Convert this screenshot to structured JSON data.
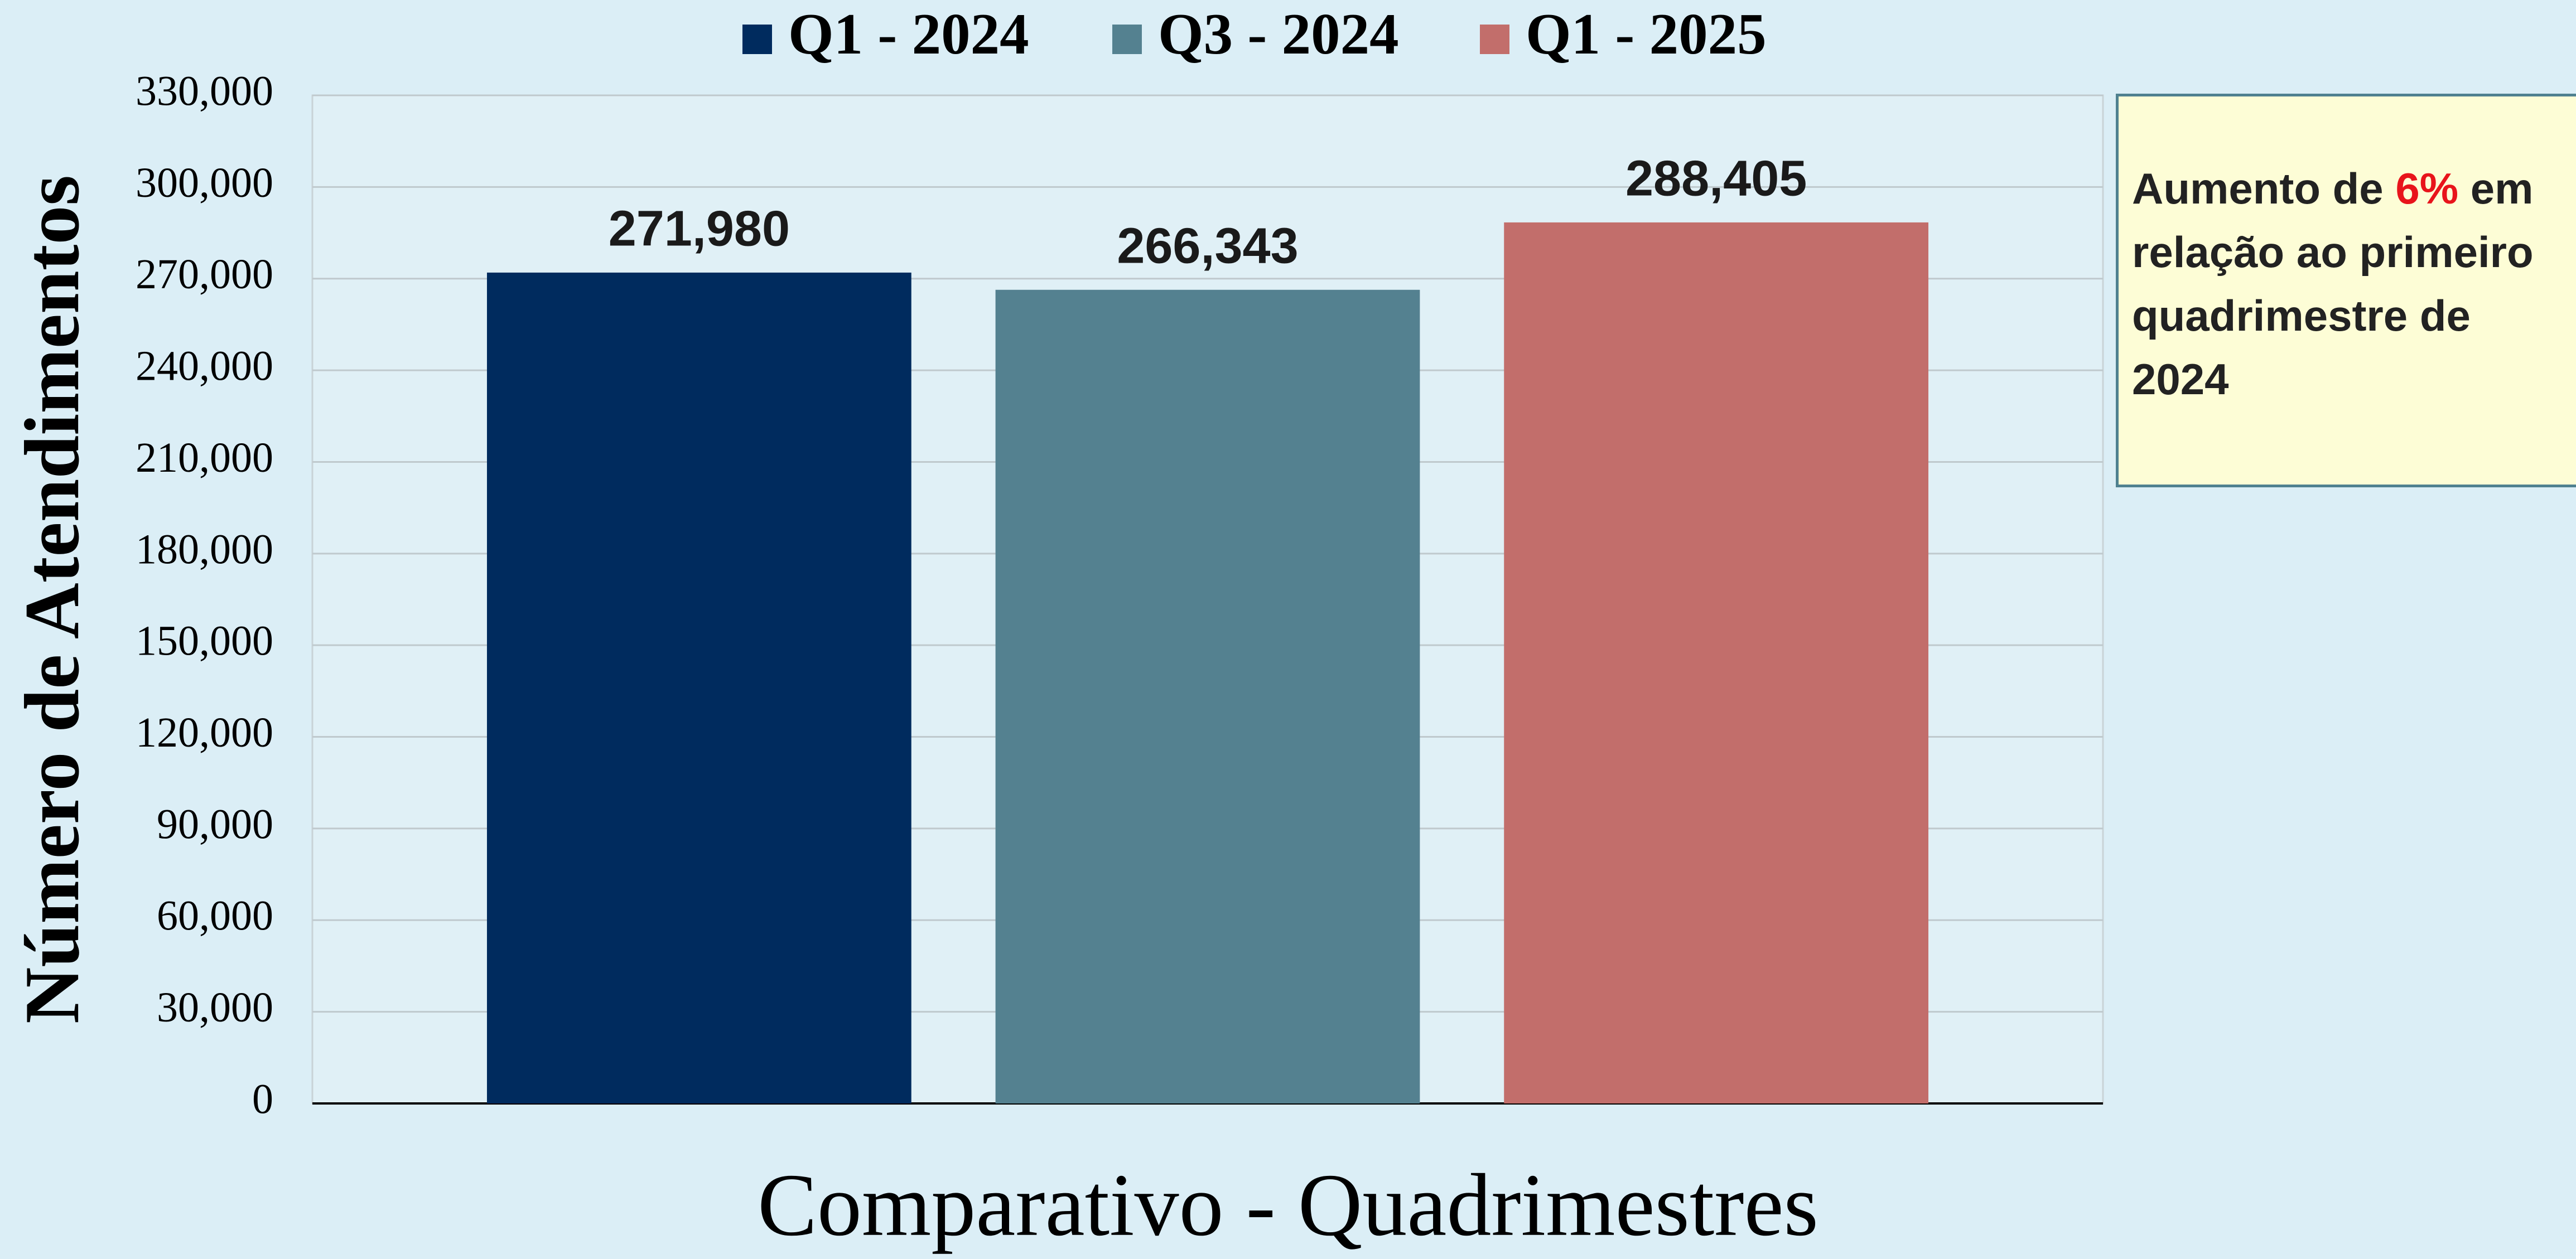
{
  "chart_data": {
    "type": "bar",
    "x_label": "Comparativo - Quadrimestres",
    "y_label": "Número de Atendimentos",
    "categories": [
      null
    ],
    "series": [
      {
        "name": "Q1 - 2024",
        "color": "#002b5e",
        "values": [
          271980
        ],
        "value_labels": [
          "271,980"
        ]
      },
      {
        "name": "Q3 - 2024",
        "color": "#548190",
        "values": [
          266343
        ],
        "value_labels": [
          "266,343"
        ]
      },
      {
        "name": "Q1 - 2025",
        "color": "#c26e6b",
        "values": [
          288405
        ],
        "value_labels": [
          "288,405"
        ]
      }
    ],
    "ylim": [
      0,
      330000
    ],
    "yticks": [
      0,
      {
        "value": 30000,
        "label": "30,000"
      },
      {
        "value": 60000,
        "label": "60,000"
      },
      {
        "value": 90000,
        "label": "90,000"
      },
      {
        "value": 120000,
        "label": "120,000"
      },
      {
        "value": 150000,
        "label": "150,000"
      },
      {
        "value": 180000,
        "label": "180,000"
      },
      {
        "value": 210000,
        "label": "210,000"
      },
      {
        "value": 240000,
        "label": "240,000"
      },
      {
        "value": 270000,
        "label": "270,000"
      },
      {
        "value": 300000,
        "label": "300,000"
      },
      {
        "value": 330000,
        "label": "330,000"
      }
    ],
    "grid": true,
    "legend": "top",
    "annotation": [
      "Aumento de",
      "6%",
      "em relação ao primeiro quadrimestre de 2024"
    ]
  }
}
